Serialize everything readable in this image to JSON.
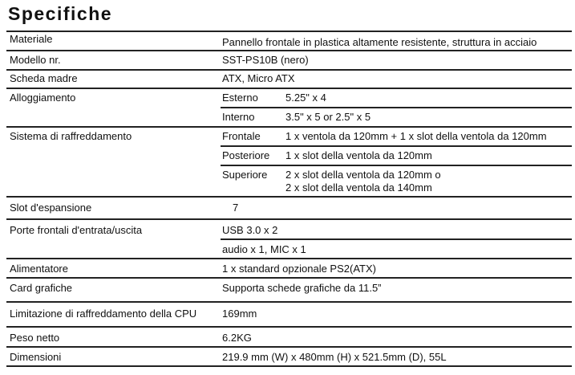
{
  "title": "Specifiche",
  "rows": {
    "materiale": {
      "label": "Materiale",
      "value": "Pannello frontale in plastica altamente resistente, struttura in acciaio"
    },
    "modello": {
      "label": "Modello nr.",
      "value": "SST-PS10B (nero)"
    },
    "scheda": {
      "label": "Scheda madre",
      "value": "ATX, Micro ATX"
    },
    "alloggiamento": {
      "label": "Alloggiamento",
      "sub": [
        {
          "label": "Esterno",
          "value": "5.25\" x 4"
        },
        {
          "label": "Interno",
          "value": "3.5\" x 5 or 2.5\" x 5"
        }
      ]
    },
    "raffreddamento": {
      "label": "Sistema di raffreddamento",
      "sub": [
        {
          "label": "Frontale",
          "value": "1 x ventola da 120mm + 1 x slot della ventola da 120mm"
        },
        {
          "label": "Posteriore",
          "value": "1 x slot della ventola da 120mm"
        },
        {
          "label": "Superiore",
          "value": "2 x slot della ventola da 120mm o",
          "value2": "2 x slot della ventola da 140mm"
        }
      ]
    },
    "slot": {
      "label": "Slot d'espansione",
      "value": "7"
    },
    "porte": {
      "label": "Porte frontali d'entrata/uscita",
      "value": "USB 3.0 x 2",
      "value2": "audio x 1, MIC x 1"
    },
    "alimentatore": {
      "label": "Alimentatore",
      "value": "1 x standard opzionale PS2(ATX)"
    },
    "card": {
      "label": "Card grafiche",
      "value": "Supporta schede grafiche da 11.5”"
    },
    "cpu": {
      "label": "Limitazione di raffreddamento della CPU",
      "value": "169mm"
    },
    "peso": {
      "label": "Peso netto",
      "value": "6.2KG"
    },
    "dimensioni": {
      "label": "Dimensioni",
      "value": "219.9 mm (W) x 480mm (H) x 521.5mm (D), 55L"
    }
  }
}
